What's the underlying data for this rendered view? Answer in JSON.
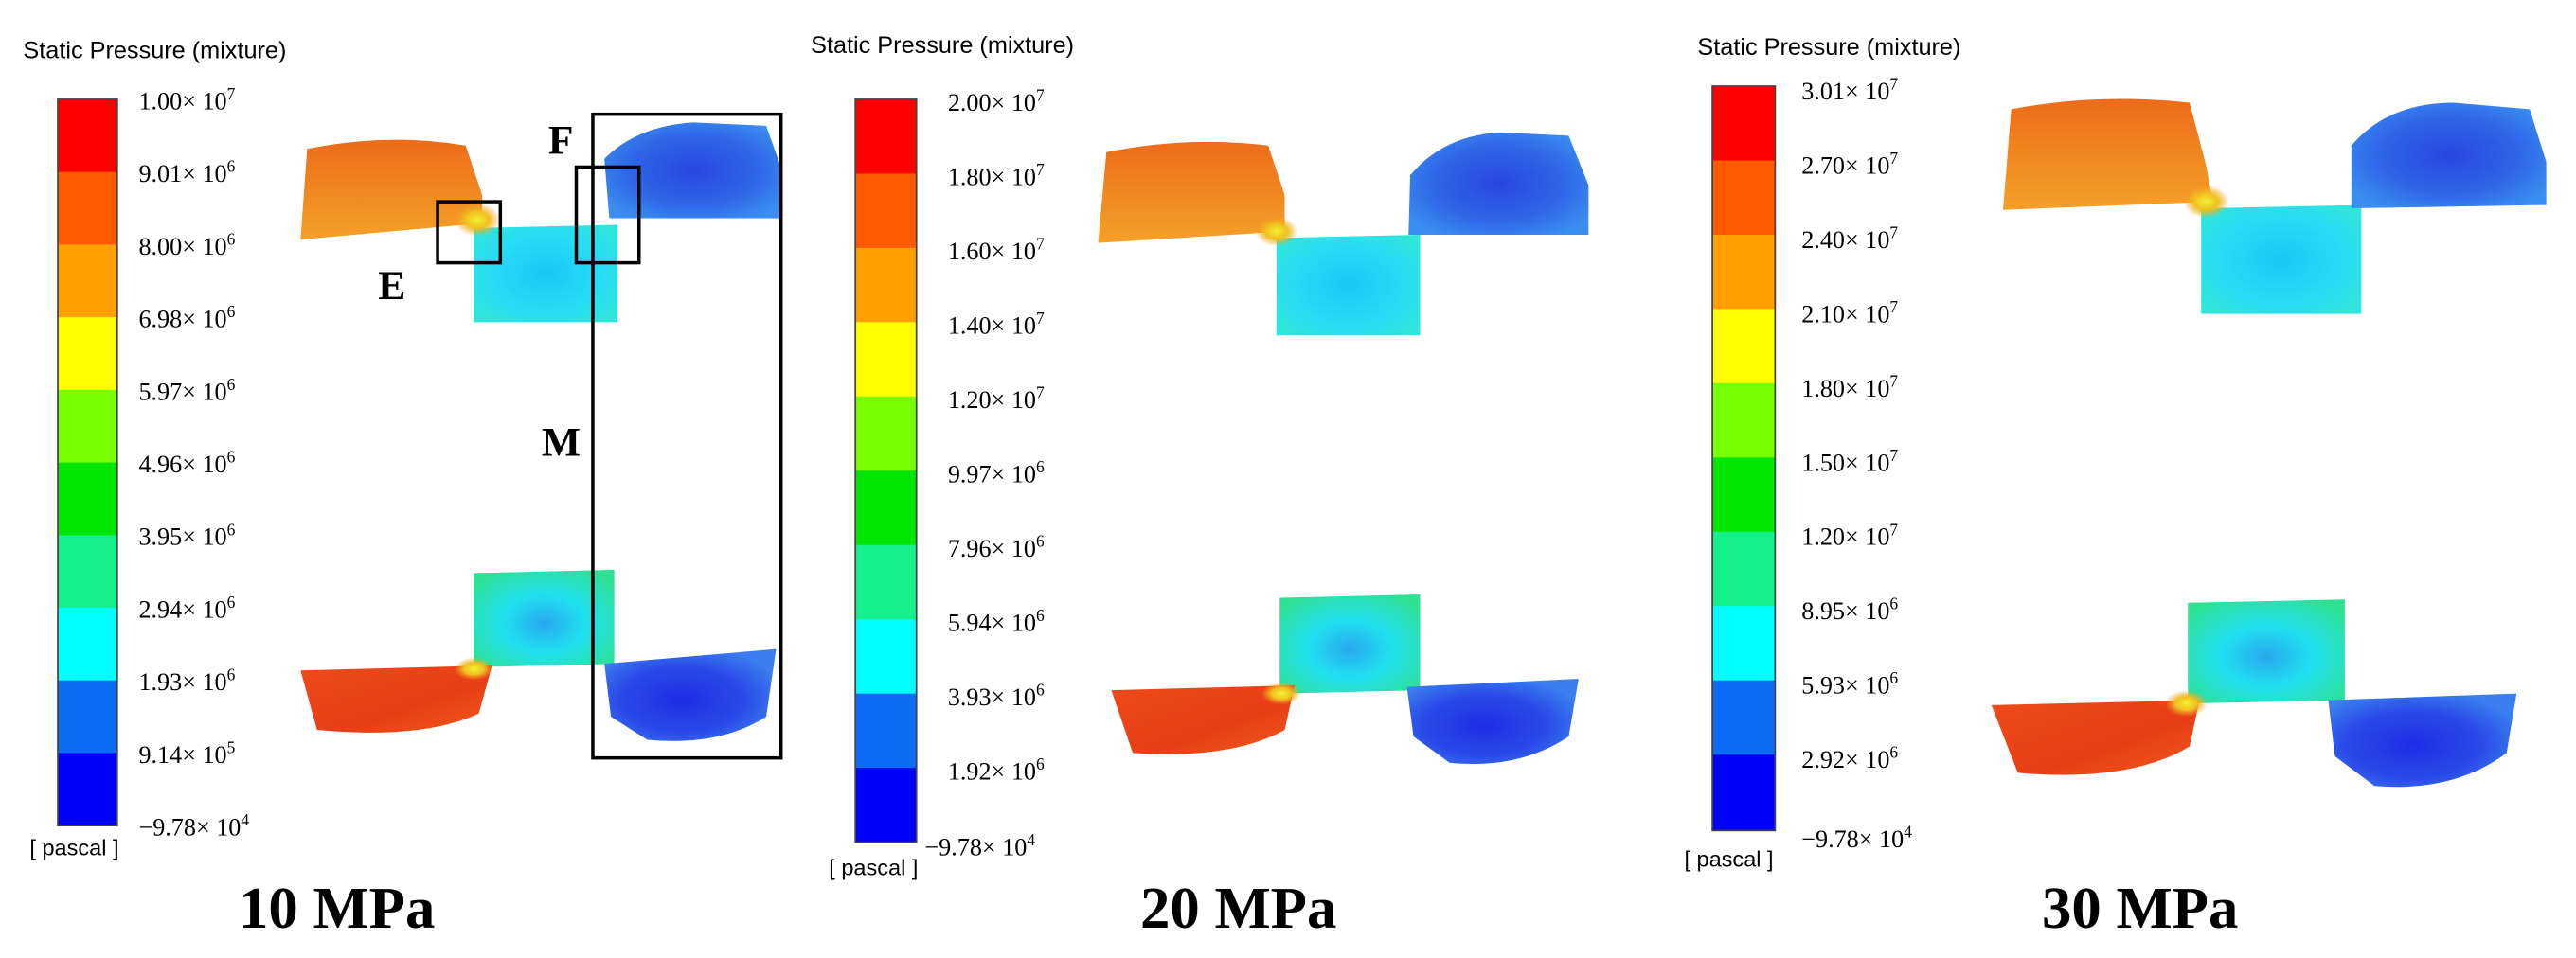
{
  "colormap": [
    "#0000ff",
    "#0b6cf5",
    "#00ffff",
    "#14f08c",
    "#00e600",
    "#78ff00",
    "#ffff00",
    "#ffa000",
    "#ff5a00",
    "#ff0000"
  ],
  "panels": [
    {
      "legend_title": "Static Pressure (mixture)",
      "unit": "[ pascal ]",
      "ticks": [
        "1.00× 10^7",
        "9.01× 10^6",
        "8.00× 10^6",
        "6.98× 10^6",
        "5.97× 10^6",
        "4.96× 10^6",
        "3.95× 10^6",
        "2.94× 10^6",
        "1.93× 10^6",
        "9.14× 10^5",
        "−9.78× 10^4"
      ],
      "caption": "10 MPa",
      "annotations": [
        "E",
        "F",
        "M"
      ]
    },
    {
      "legend_title": "Static Pressure (mixture)",
      "unit": "[ pascal ]",
      "ticks": [
        "2.00× 10^7",
        "1.80× 10^7",
        "1.60× 10^7",
        "1.40× 10^7",
        "1.20× 10^7",
        "9.97× 10^6",
        "7.96× 10^6",
        "5.94× 10^6",
        "3.93× 10^6",
        "1.92× 10^6",
        "−9.78× 10^4"
      ],
      "caption": "20 MPa",
      "annotations": []
    },
    {
      "legend_title": "Static Pressure (mixture)",
      "unit": "[ pascal ]",
      "ticks": [
        "3.01× 10^7",
        "2.70× 10^7",
        "2.40× 10^7",
        "2.10× 10^7",
        "1.80× 10^7",
        "1.50× 10^7",
        "1.20× 10^7",
        "8.95× 10^6",
        "5.93× 10^6",
        "2.92× 10^6",
        "−9.78× 10^4"
      ],
      "caption": "30 MPa",
      "annotations": []
    }
  ]
}
